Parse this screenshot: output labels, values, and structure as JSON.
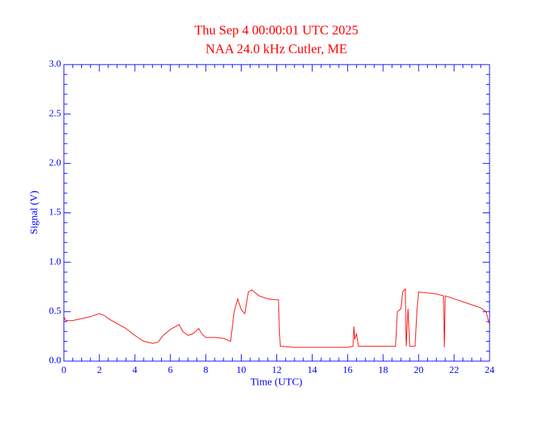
{
  "chart_data": {
    "type": "line",
    "title": "Thu Sep 4 00:00:01 UTC 2025",
    "subtitle": "NAA 24.0 kHz Cutler, ME",
    "x_label": "Time (UTC)",
    "y_label": "Signal (V)",
    "xlim": [
      0,
      24
    ],
    "ylim": [
      0,
      3
    ],
    "xticks": [
      0,
      2,
      4,
      6,
      8,
      10,
      12,
      14,
      16,
      18,
      20,
      22,
      24
    ],
    "yticks": [
      {
        "value": 0,
        "label": "0.0"
      },
      {
        "value": 0.5,
        "label": "0.5"
      },
      {
        "value": 1,
        "label": "1.0"
      },
      {
        "value": 1.5,
        "label": "1.5"
      },
      {
        "value": 2,
        "label": "2.0"
      },
      {
        "value": 2.5,
        "label": "2.5"
      },
      {
        "value": 3,
        "label": "3.0"
      }
    ],
    "axis_color": "#0000ff",
    "series": [
      {
        "color": "#ff0000",
        "x": [
          0,
          0.1,
          0.5,
          1,
          1.5,
          2,
          2.3,
          2.5,
          3,
          3.5,
          4,
          4.5,
          5,
          5.3,
          5.6,
          6,
          6.3,
          6.5,
          6.7,
          7,
          7.3,
          7.6,
          7.8,
          8,
          8.5,
          9,
          9.4,
          9.6,
          9.8,
          10,
          10.2,
          10.4,
          10.6,
          11,
          11.5,
          12,
          12.1,
          12.15,
          12.2,
          13,
          14,
          15,
          16,
          16.3,
          16.35,
          16.4,
          16.5,
          16.6,
          17,
          18,
          18.7,
          18.8,
          19,
          19.1,
          19.25,
          19.3,
          19.4,
          19.5,
          19.8,
          19.9,
          20,
          21,
          21.4,
          21.45,
          21.5,
          22,
          22.5,
          23,
          23.5,
          23.8,
          24
        ],
        "values": [
          0.45,
          0.41,
          0.41,
          0.43,
          0.45,
          0.48,
          0.46,
          0.43,
          0.38,
          0.33,
          0.26,
          0.2,
          0.18,
          0.19,
          0.26,
          0.32,
          0.35,
          0.37,
          0.3,
          0.26,
          0.28,
          0.33,
          0.27,
          0.24,
          0.24,
          0.23,
          0.2,
          0.5,
          0.63,
          0.52,
          0.48,
          0.7,
          0.72,
          0.66,
          0.63,
          0.62,
          0.62,
          0.3,
          0.15,
          0.14,
          0.14,
          0.14,
          0.14,
          0.15,
          0.35,
          0.22,
          0.28,
          0.15,
          0.15,
          0.15,
          0.15,
          0.5,
          0.53,
          0.7,
          0.73,
          0.15,
          0.53,
          0.15,
          0.15,
          0.5,
          0.7,
          0.68,
          0.66,
          0.14,
          0.66,
          0.63,
          0.6,
          0.57,
          0.54,
          0.5,
          0.37
        ]
      }
    ]
  }
}
